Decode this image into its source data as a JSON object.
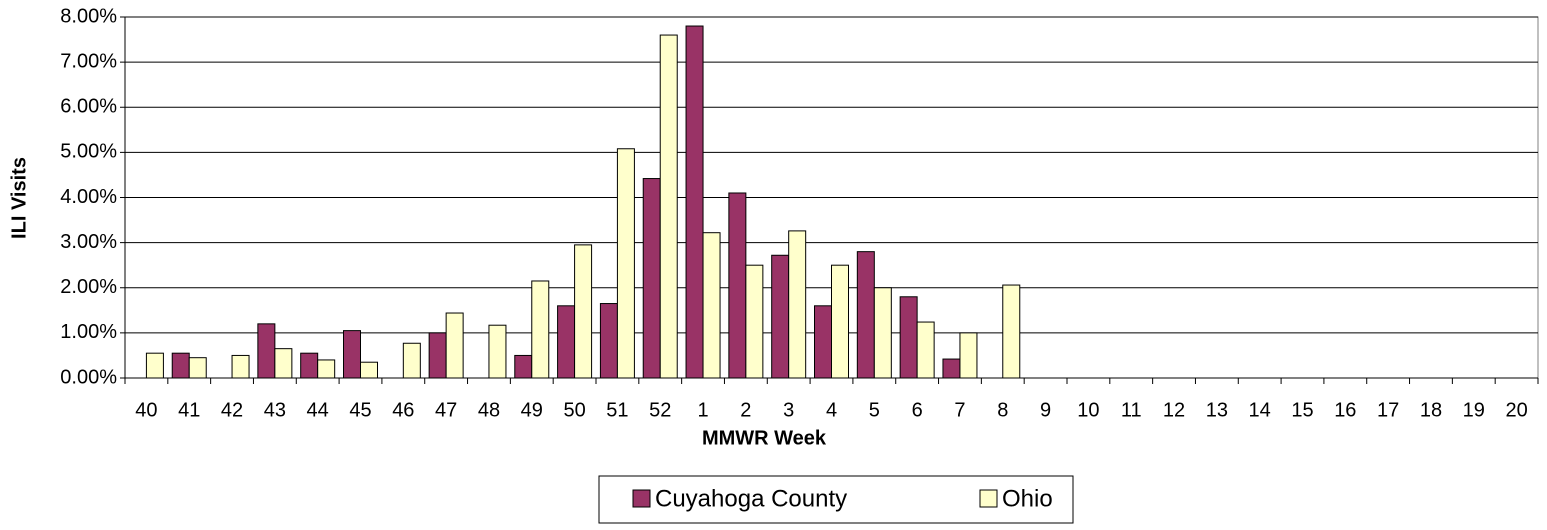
{
  "chart_data": {
    "type": "bar",
    "x_label": "MMWR Week",
    "y_label": "ILI Visits",
    "categories": [
      "40",
      "41",
      "42",
      "43",
      "44",
      "45",
      "46",
      "47",
      "48",
      "49",
      "50",
      "51",
      "52",
      "1",
      "2",
      "3",
      "4",
      "5",
      "6",
      "7",
      "8",
      "9",
      "10",
      "11",
      "12",
      "13",
      "14",
      "15",
      "16",
      "17",
      "18",
      "19",
      "20"
    ],
    "series": [
      {
        "name": "Cuyahoga County",
        "color": "#993366",
        "values": [
          0,
          0.55,
          0,
          1.2,
          0.55,
          1.05,
          0,
          1.0,
          0,
          0.5,
          1.6,
          1.65,
          4.42,
          7.8,
          4.1,
          2.72,
          1.6,
          2.8,
          1.8,
          0.42,
          0,
          null,
          null,
          null,
          null,
          null,
          null,
          null,
          null,
          null,
          null,
          null,
          null
        ]
      },
      {
        "name": "Ohio",
        "color": "#ffffcc",
        "values": [
          0.55,
          0.45,
          0.5,
          0.65,
          0.4,
          0.35,
          0.77,
          1.44,
          1.17,
          2.15,
          2.95,
          5.08,
          7.6,
          3.22,
          2.5,
          3.26,
          2.5,
          2.0,
          1.24,
          1.0,
          2.06,
          null,
          null,
          null,
          null,
          null,
          null,
          null,
          null,
          null,
          null,
          null,
          null
        ]
      }
    ],
    "ylim": [
      0,
      8
    ],
    "yticks": [
      {
        "value": 0,
        "label": "0.00%"
      },
      {
        "value": 1,
        "label": "1.00%"
      },
      {
        "value": 2,
        "label": "2.00%"
      },
      {
        "value": 3,
        "label": "3.00%"
      },
      {
        "value": 4,
        "label": "4.00%"
      },
      {
        "value": 5,
        "label": "5.00%"
      },
      {
        "value": 6,
        "label": "6.00%"
      },
      {
        "value": 7,
        "label": "7.00%"
      },
      {
        "value": 8,
        "label": "8.00%"
      }
    ],
    "grid": true,
    "legend": "bottom"
  }
}
